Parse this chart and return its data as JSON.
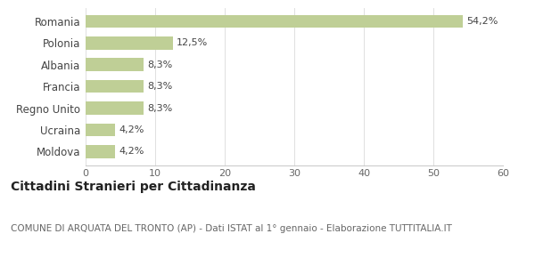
{
  "categories": [
    "Moldova",
    "Ucraina",
    "Regno Unito",
    "Francia",
    "Albania",
    "Polonia",
    "Romania"
  ],
  "values": [
    4.2,
    4.2,
    8.3,
    8.3,
    8.3,
    12.5,
    54.2
  ],
  "labels": [
    "4,2%",
    "4,2%",
    "8,3%",
    "8,3%",
    "8,3%",
    "12,5%",
    "54,2%"
  ],
  "bar_color": "#bfcf96",
  "background_color": "#ffffff",
  "xlim": [
    0,
    60
  ],
  "xticks": [
    0,
    10,
    20,
    30,
    40,
    50,
    60
  ],
  "title_bold": "Cittadini Stranieri per Cittadinanza",
  "subtitle": "COMUNE DI ARQUATA DEL TRONTO (AP) - Dati ISTAT al 1° gennaio - Elaborazione TUTTITALIA.IT",
  "title_fontsize": 10,
  "subtitle_fontsize": 7.5,
  "label_fontsize": 8,
  "tick_fontsize": 8,
  "ytick_fontsize": 8.5,
  "bar_height": 0.6
}
